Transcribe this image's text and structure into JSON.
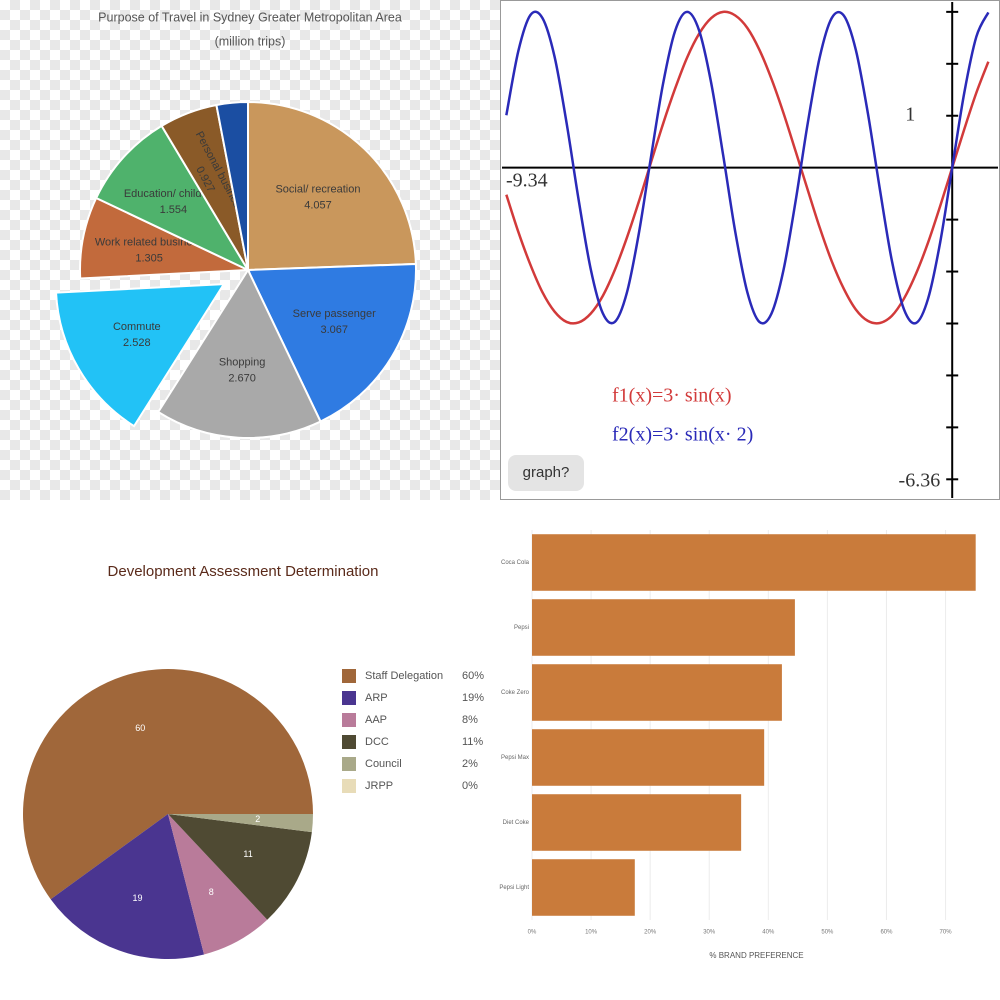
{
  "chart_data": [
    {
      "type": "pie",
      "title": "Purpose of Travel in Sydney Greater Metropolitan Area",
      "subtitle": "(million trips)",
      "categories": [
        "Social/ recreation",
        "Serve passenger",
        "Shopping",
        "Commute",
        "Work related business",
        "Education/ childcare",
        "Personal business",
        null
      ],
      "values": [
        4.057,
        3.067,
        2.67,
        2.528,
        1.305,
        1.554,
        0.927,
        0.5
      ],
      "value_labels": [
        "4.057",
        "3.067",
        "2.670",
        "2.528",
        "1.305",
        "1.554",
        "0.927",
        null
      ],
      "colors": [
        "#c9975c",
        "#2f7be2",
        "#a9a9a9",
        "#22c2f6",
        "#c26a3c",
        "#4fb26c",
        "#8a5a28",
        "#1b4ea2"
      ]
    },
    {
      "type": "line",
      "x": [
        -9.25,
        -9.0,
        -8.75,
        -8.5,
        -8.25,
        -8.0,
        -7.75,
        -7.5,
        -7.25,
        -7.0,
        -6.75,
        -6.5,
        -6.25,
        -6.0,
        -5.75,
        -5.5,
        -5.25,
        -5.0,
        -4.75,
        -4.5,
        -4.25,
        -4.0,
        -3.75,
        -3.5,
        -3.25,
        -3.0,
        -2.75,
        -2.5,
        -2.25,
        -2.0,
        -1.75,
        -1.5,
        -1.25,
        -1.0,
        -0.75,
        -0.5,
        -0.25,
        0,
        0.25,
        0.5,
        0.75
      ],
      "series": [
        {
          "name": "f1(x)=3· sin(x)",
          "color": "#d23a3a",
          "values": [
            -0.52,
            -1.24,
            -1.87,
            -2.4,
            -2.77,
            -2.97,
            -2.98,
            -2.81,
            -2.47,
            -1.97,
            -1.35,
            -0.65,
            0.1,
            0.84,
            1.52,
            2.12,
            2.58,
            2.88,
            3.0,
            2.93,
            2.69,
            2.27,
            1.71,
            1.05,
            0.32,
            -0.42,
            -1.15,
            -1.8,
            -2.33,
            -2.73,
            -2.95,
            -2.99,
            -2.85,
            -2.52,
            -2.04,
            -1.44,
            -0.74,
            0,
            0.74,
            1.44,
            2.04
          ]
        },
        {
          "name": "f2(x)=3· sin(x· 2)",
          "color": "#2a2ab8",
          "values": [
            1.01,
            2.25,
            2.94,
            2.88,
            2.14,
            0.86,
            -0.62,
            -1.95,
            -2.8,
            -2.97,
            -2.41,
            -1.26,
            0.2,
            1.61,
            2.63,
            3.0,
            2.64,
            1.63,
            0.23,
            -1.24,
            -2.4,
            -2.97,
            -2.81,
            -1.97,
            -0.65,
            0.84,
            2.12,
            2.88,
            2.93,
            2.27,
            1.05,
            -0.42,
            -1.8,
            -2.73,
            -2.99,
            -2.52,
            -1.44,
            0,
            1.44,
            2.52,
            2.99
          ]
        }
      ],
      "xlim": [
        -9.34,
        0.95
      ],
      "ylim": [
        -6.36,
        3.19
      ],
      "yticks": [
        1
      ],
      "minor_yticks": [
        -6,
        -5,
        -4,
        -3,
        -2,
        -1,
        2,
        3
      ],
      "button": "graph?"
    },
    {
      "type": "pie",
      "title": "Development Assessment Determination",
      "categories": [
        "Staff Delegation",
        "ARP",
        "AAP",
        "DCC",
        "Council",
        "JRPP"
      ],
      "values": [
        60,
        19,
        8,
        11,
        2,
        0
      ],
      "value_labels": [
        "60%",
        "19%",
        "8%",
        "11%",
        "2%",
        "0%"
      ],
      "colors": [
        "#a0673a",
        "#4a3590",
        "#b97b9a",
        "#4f4a33",
        "#a9a989",
        "#e8dcb8"
      ],
      "legend": "right"
    },
    {
      "type": "bar",
      "orientation": "horizontal",
      "categories": [
        "Coca Cola",
        "Pepsi",
        "Coke Zero",
        "Pepsi Max",
        "Diet Coke",
        "Pepsi Light"
      ],
      "values": [
        75.1,
        44.5,
        42.3,
        39.3,
        35.4,
        17.4
      ],
      "color": "#c97b3b",
      "xlim": [
        0,
        76
      ],
      "xticks": [
        {
          "value": 0,
          "label": "0%"
        },
        {
          "value": 10,
          "label": "10%"
        },
        {
          "value": 20,
          "label": "20%"
        },
        {
          "value": 30,
          "label": "30%"
        },
        {
          "value": 40,
          "label": "40%"
        },
        {
          "value": 50,
          "label": "50%"
        },
        {
          "value": 60,
          "label": "60%"
        },
        {
          "value": 70,
          "label": "70%"
        }
      ],
      "xlabel": "% BRAND PREFERENCE",
      "grid": true
    }
  ]
}
